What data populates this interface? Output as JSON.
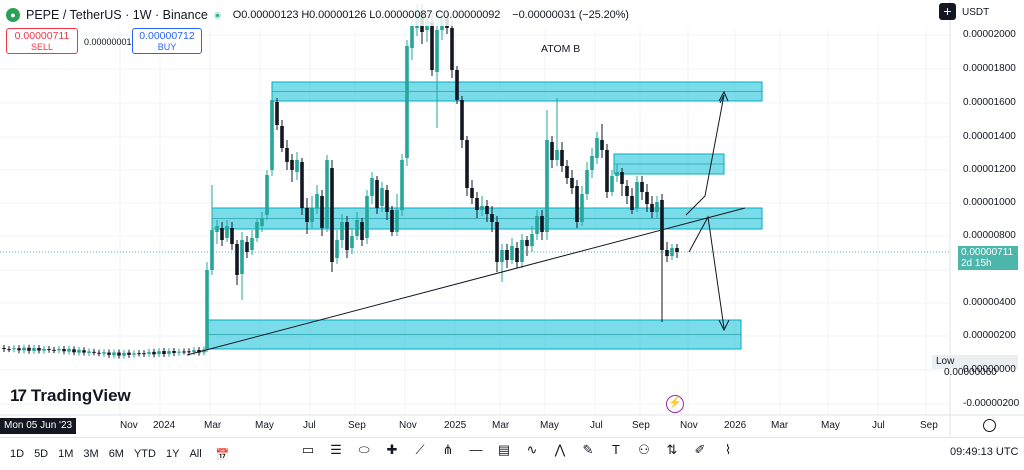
{
  "header": {
    "symbol_icon": "frog-icon",
    "title": "PEPE / TetherUS · 1W · Binance",
    "ohlc": "O0.00000123 H0.00000126 L0.00000087 C0.00000092",
    "change": "−0.00000031 (−25.20%)"
  },
  "trade": {
    "sell_price": "0.00000711",
    "sell_label": "SELL",
    "spread": "0.00000001",
    "buy_price": "0.00000712",
    "buy_label": "BUY"
  },
  "currency": "USDT",
  "annotation": "ATOM B",
  "brand": "TradingView",
  "yaxis": [
    "0.00002000",
    "0.00001800",
    "0.00001600",
    "0.00001400",
    "0.00001200",
    "0.00001000",
    "0.00000800",
    "0.00000400",
    "0.00000200",
    "0.00000000",
    "-0.00000200"
  ],
  "price_tag": {
    "price": "0.00000711",
    "countdown": "2d 15h"
  },
  "low_tag": {
    "label": "Low",
    "value": "0.00000060"
  },
  "xaxis": {
    "current": "Mon 05 Jun '23",
    "labels": [
      "Nov",
      "2024",
      "Mar",
      "May",
      "Jul",
      "Sep",
      "Nov",
      "2025",
      "Mar",
      "May",
      "Jul",
      "Sep",
      "Nov",
      "2026",
      "Mar",
      "May",
      "Jul",
      "Sep"
    ]
  },
  "timeframes": [
    "1D",
    "5D",
    "1M",
    "3M",
    "6M",
    "YTD",
    "1Y",
    "All"
  ],
  "clock": "09:49:13 UTC",
  "colors": {
    "up": "#26a69a",
    "down": "#131722",
    "zone": "#4dd0e1",
    "accent": "#2962ff"
  },
  "tools": [
    "rectangle-icon",
    "horizontal-lines-icon",
    "ellipse-icon",
    "crosshair-icon",
    "trendline-icon",
    "pitchfork-icon",
    "horizontal-ray-icon",
    "channel-icon",
    "wave-icon",
    "pattern-icon",
    "brush-icon",
    "text-icon",
    "people-icon",
    "long-short-icon",
    "pencil-icon",
    "path-icon"
  ]
}
